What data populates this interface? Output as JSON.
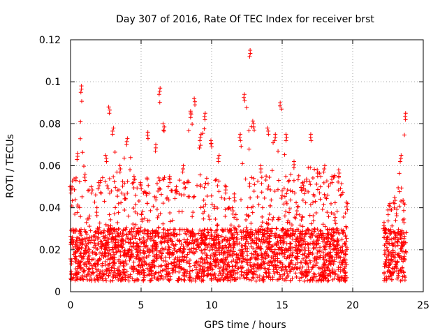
{
  "chart_data": {
    "type": "scatter",
    "title": "Day 307 of 2016, Rate Of TEC Index for receiver brst",
    "xlabel": "GPS time / hours",
    "ylabel": "ROTI / TECUs",
    "xlim": [
      0,
      25
    ],
    "ylim": [
      0,
      0.12
    ],
    "x_ticks": [
      0,
      5,
      10,
      15,
      20,
      25
    ],
    "x_tick_labels": [
      "0",
      "5",
      "10",
      "15",
      "20",
      "25"
    ],
    "y_ticks": [
      0,
      0.02,
      0.04,
      0.06,
      0.08,
      0.1,
      0.12
    ],
    "y_tick_labels": [
      "0",
      "0.02",
      "0.04",
      "0.06",
      "0.08",
      "0.1",
      "0.12"
    ],
    "grid": true,
    "marker": "+",
    "series": [
      {
        "name": "ROTI",
        "color": "#ff0000",
        "coverage_hours": [
          [
            0,
            19.6
          ],
          [
            22.2,
            23.8
          ]
        ],
        "typical_band": [
          0.005,
          0.03
        ],
        "envelope": [
          [
            0.0,
            0.05
          ],
          [
            0.5,
            0.066
          ],
          [
            0.75,
            0.098
          ],
          [
            1.0,
            0.056
          ],
          [
            1.5,
            0.05
          ],
          [
            2.0,
            0.052
          ],
          [
            2.5,
            0.065
          ],
          [
            2.75,
            0.088
          ],
          [
            3.0,
            0.078
          ],
          [
            3.5,
            0.06
          ],
          [
            4.0,
            0.073
          ],
          [
            4.5,
            0.055
          ],
          [
            5.0,
            0.052
          ],
          [
            5.5,
            0.076
          ],
          [
            6.0,
            0.07
          ],
          [
            6.3,
            0.097
          ],
          [
            6.6,
            0.08
          ],
          [
            7.0,
            0.055
          ],
          [
            7.5,
            0.05
          ],
          [
            8.0,
            0.06
          ],
          [
            8.5,
            0.086
          ],
          [
            8.8,
            0.092
          ],
          [
            9.2,
            0.075
          ],
          [
            9.5,
            0.085
          ],
          [
            10.0,
            0.072
          ],
          [
            10.5,
            0.065
          ],
          [
            11.0,
            0.05
          ],
          [
            11.5,
            0.04
          ],
          [
            12.0,
            0.075
          ],
          [
            12.3,
            0.094
          ],
          [
            12.7,
            0.115
          ],
          [
            13.0,
            0.08
          ],
          [
            13.5,
            0.06
          ],
          [
            14.0,
            0.078
          ],
          [
            14.5,
            0.075
          ],
          [
            14.9,
            0.09
          ],
          [
            15.3,
            0.075
          ],
          [
            15.8,
            0.062
          ],
          [
            16.5,
            0.052
          ],
          [
            17.0,
            0.075
          ],
          [
            17.5,
            0.058
          ],
          [
            18.0,
            0.06
          ],
          [
            18.5,
            0.055
          ],
          [
            19.0,
            0.058
          ],
          [
            19.6,
            0.042
          ],
          [
            22.2,
            0.033
          ],
          [
            22.6,
            0.042
          ],
          [
            23.0,
            0.045
          ],
          [
            23.4,
            0.065
          ],
          [
            23.7,
            0.085
          ]
        ]
      }
    ]
  }
}
